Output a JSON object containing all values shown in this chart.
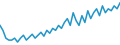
{
  "values": [
    55,
    50,
    42,
    40,
    40,
    42,
    38,
    42,
    45,
    40,
    43,
    46,
    42,
    45,
    48,
    44,
    50,
    47,
    52,
    50,
    55,
    52,
    58,
    62,
    55,
    68,
    60,
    55,
    65,
    58,
    70,
    62,
    68,
    72,
    65,
    75,
    68,
    72,
    70,
    75,
    72,
    78
  ],
  "line_color": "#2196c8",
  "background_color": "#ffffff",
  "linewidth": 1.1
}
